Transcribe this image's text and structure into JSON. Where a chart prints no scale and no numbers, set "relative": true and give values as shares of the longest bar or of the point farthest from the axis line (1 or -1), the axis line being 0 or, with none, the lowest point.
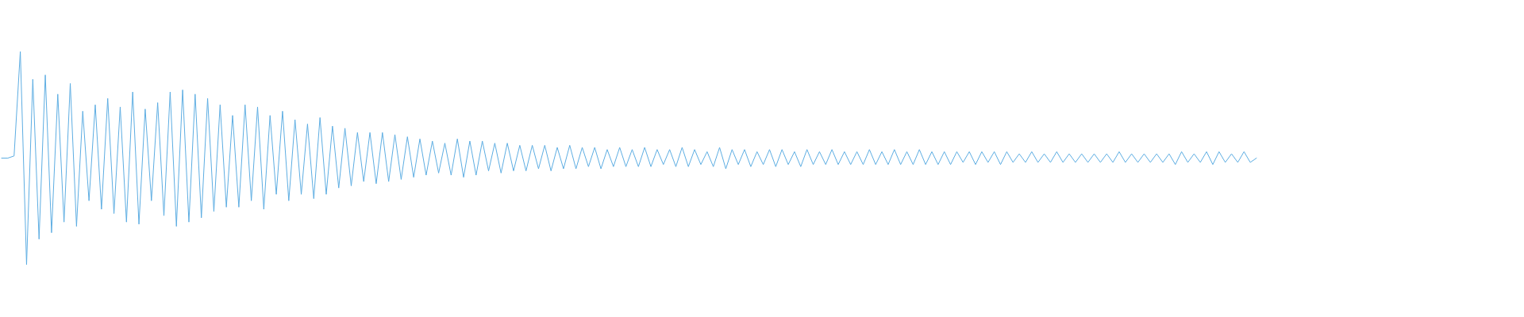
{
  "chart_data": {
    "type": "line",
    "relative": true,
    "color": "#5dade2",
    "marker": "none",
    "line_style": "solid",
    "tick_labels": false,
    "categories": [
      null,
      null,
      null,
      null,
      null,
      null,
      null,
      null,
      null,
      null,
      null,
      null,
      null,
      null,
      null,
      null,
      null,
      null,
      null,
      null,
      null,
      null,
      null,
      null,
      null,
      null,
      null,
      null,
      null,
      null,
      null,
      null,
      null,
      null,
      null,
      null,
      null,
      null,
      null,
      null,
      null,
      null,
      null,
      null,
      null,
      null,
      null,
      null,
      null,
      null,
      null,
      null,
      null,
      null,
      null,
      null,
      null,
      null,
      null,
      null,
      null,
      null,
      null,
      null,
      null,
      null,
      null,
      null,
      null,
      null,
      null,
      null,
      null,
      null,
      null,
      null,
      null,
      null,
      null,
      null,
      null,
      null,
      null,
      null,
      null,
      null,
      null,
      null,
      null,
      null,
      null,
      null,
      null,
      null,
      null,
      null,
      null,
      null,
      null,
      null,
      null,
      null,
      null,
      null,
      null,
      null,
      null,
      null,
      null,
      null,
      null,
      null,
      null,
      null,
      null,
      null,
      null,
      null,
      null,
      null,
      null,
      null,
      null,
      null,
      null,
      null,
      null,
      null,
      null,
      null,
      null,
      null,
      null,
      null,
      null,
      null,
      null,
      null,
      null,
      null,
      null,
      null,
      null,
      null,
      null,
      null,
      null,
      null,
      null,
      null,
      null,
      null,
      null,
      null,
      null,
      null,
      null,
      null,
      null,
      null,
      null,
      null,
      null,
      null,
      null,
      null,
      null,
      null,
      null,
      null,
      null,
      null,
      null,
      null,
      null,
      null,
      null,
      null,
      null,
      null,
      null,
      null,
      null,
      null,
      null,
      null,
      null,
      null,
      null,
      null,
      null,
      null,
      null,
      null,
      null,
      null,
      null,
      null,
      null,
      null,
      null,
      null
    ],
    "values": [
      0.5,
      0.5,
      0.51,
      1.0,
      0.0,
      0.87,
      0.12,
      0.89,
      0.15,
      0.8,
      0.2,
      0.85,
      0.18,
      0.72,
      0.3,
      0.75,
      0.26,
      0.78,
      0.24,
      0.74,
      0.2,
      0.81,
      0.19,
      0.73,
      0.3,
      0.76,
      0.23,
      0.81,
      0.18,
      0.82,
      0.2,
      0.8,
      0.22,
      0.78,
      0.25,
      0.75,
      0.27,
      0.7,
      0.27,
      0.75,
      0.3,
      0.74,
      0.26,
      0.7,
      0.33,
      0.72,
      0.3,
      0.68,
      0.33,
      0.66,
      0.31,
      0.69,
      0.33,
      0.65,
      0.36,
      0.64,
      0.37,
      0.62,
      0.39,
      0.62,
      0.38,
      0.62,
      0.39,
      0.61,
      0.4,
      0.6,
      0.41,
      0.59,
      0.42,
      0.58,
      0.43,
      0.57,
      0.42,
      0.59,
      0.41,
      0.58,
      0.42,
      0.58,
      0.44,
      0.57,
      0.43,
      0.57,
      0.44,
      0.56,
      0.44,
      0.56,
      0.45,
      0.56,
      0.44,
      0.55,
      0.45,
      0.56,
      0.45,
      0.55,
      0.46,
      0.55,
      0.45,
      0.54,
      0.46,
      0.55,
      0.46,
      0.54,
      0.46,
      0.55,
      0.46,
      0.54,
      0.47,
      0.54,
      0.46,
      0.55,
      0.46,
      0.54,
      0.47,
      0.53,
      0.46,
      0.55,
      0.45,
      0.54,
      0.47,
      0.54,
      0.46,
      0.53,
      0.47,
      0.54,
      0.46,
      0.54,
      0.47,
      0.53,
      0.46,
      0.54,
      0.47,
      0.53,
      0.47,
      0.54,
      0.47,
      0.53,
      0.47,
      0.53,
      0.47,
      0.54,
      0.47,
      0.53,
      0.47,
      0.54,
      0.47,
      0.53,
      0.47,
      0.54,
      0.47,
      0.53,
      0.47,
      0.53,
      0.47,
      0.53,
      0.48,
      0.53,
      0.47,
      0.53,
      0.48,
      0.53,
      0.47,
      0.53,
      0.48,
      0.52,
      0.48,
      0.53,
      0.48,
      0.52,
      0.48,
      0.53,
      0.48,
      0.52,
      0.48,
      0.52,
      0.48,
      0.52,
      0.48,
      0.52,
      0.48,
      0.53,
      0.48,
      0.52,
      0.48,
      0.52,
      0.48,
      0.52,
      0.48,
      0.52,
      0.47,
      0.53,
      0.48,
      0.52,
      0.48,
      0.53,
      0.47,
      0.53,
      0.48,
      0.52,
      0.48,
      0.53,
      0.48,
      0.5
    ]
  }
}
